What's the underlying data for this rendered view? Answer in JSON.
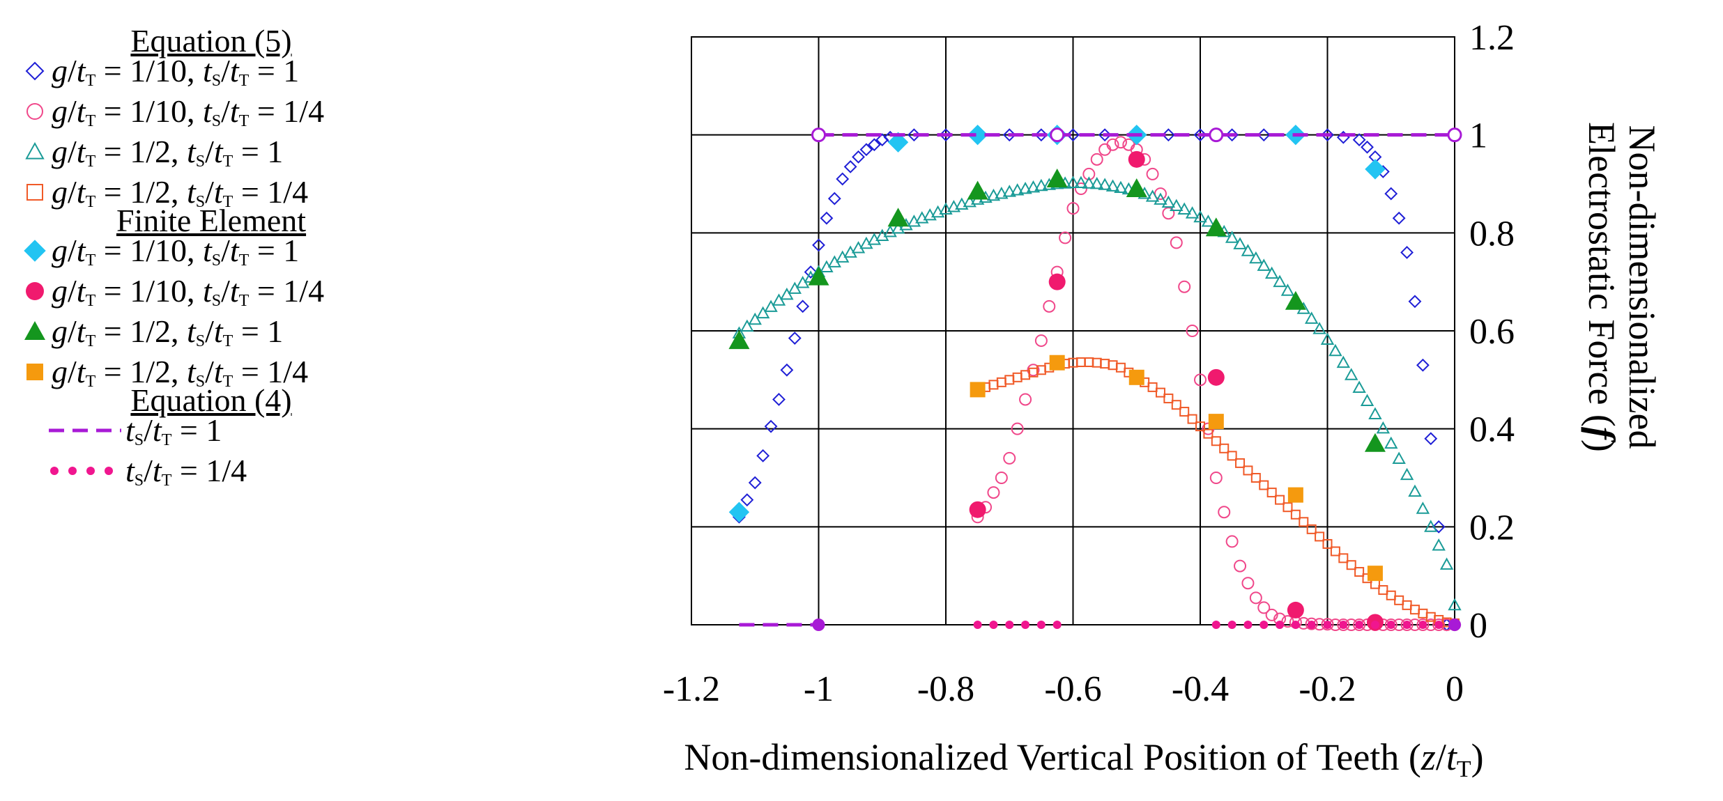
{
  "legend": {
    "heading_eq5": "Equation (5)",
    "heading_fe": "Finite Element",
    "heading_eq4": "Equation (4)",
    "items": [
      {
        "id": "eq5_a",
        "g": "1/10",
        "ts": "1",
        "marker": "diamond-open",
        "color": "#1f1fd6"
      },
      {
        "id": "eq5_b",
        "g": "1/10",
        "ts": "1/4",
        "marker": "circle-open",
        "color": "#f0478a"
      },
      {
        "id": "eq5_c",
        "g": "1/2",
        "ts": "1",
        "marker": "triangle-open",
        "color": "#1a9b97"
      },
      {
        "id": "eq5_d",
        "g": "1/2",
        "ts": "1/4",
        "marker": "square-open",
        "color": "#f05a28"
      },
      {
        "id": "fe_a",
        "g": "1/10",
        "ts": "1",
        "marker": "diamond-filled",
        "color": "#22c4f2"
      },
      {
        "id": "fe_b",
        "g": "1/10",
        "ts": "1/4",
        "marker": "circle-filled",
        "color": "#f01a6e"
      },
      {
        "id": "fe_c",
        "g": "1/2",
        "ts": "1",
        "marker": "triangle-filled",
        "color": "#14961e"
      },
      {
        "id": "fe_d",
        "g": "1/2",
        "ts": "1/4",
        "marker": "square-filled",
        "color": "#f59a0e"
      },
      {
        "id": "eq4_a",
        "ts": "1",
        "marker": "dash-line",
        "color": "#a81ad6"
      },
      {
        "id": "eq4_b",
        "ts": "1/4",
        "marker": "dot-line",
        "color": "#f0168f"
      }
    ]
  },
  "chart_data": {
    "type": "scatter",
    "title": "",
    "xlabel": "Non-dimensionalized Vertical Position of Teeth (z/tT)",
    "ylabel": "Non-dimensionalized Electrostatic Force (f)",
    "xlim": [
      -1.2,
      0
    ],
    "ylim": [
      0,
      1.2
    ],
    "xticks": [
      -1.2,
      -1,
      -0.8,
      -0.6,
      -0.4,
      -0.2,
      0
    ],
    "yticks": [
      0,
      0.2,
      0.4,
      0.6,
      0.8,
      1,
      1.2
    ],
    "xtick_labels": [
      "-1.2",
      "-1",
      "-0.8",
      "-0.6",
      "-0.4",
      "-0.2",
      "0"
    ],
    "ytick_labels": [
      "0",
      "0.2",
      "0.4",
      "0.6",
      "0.8",
      "1",
      "1.2"
    ],
    "grid": true,
    "series": [
      {
        "name": "Equation (5) g/tT = 1/10, tS/tT = 1",
        "marker": "diamond-open",
        "color": "#1f1fd6",
        "x": [
          -1.125,
          -1.1125,
          -1.1,
          -1.0875,
          -1.075,
          -1.0625,
          -1.05,
          -1.0375,
          -1.025,
          -1.0125,
          -1,
          -0.9875,
          -0.975,
          -0.9625,
          -0.95,
          -0.9375,
          -0.925,
          -0.9125,
          -0.9,
          -0.8875,
          -0.85,
          -0.8,
          -0.75,
          -0.7,
          -0.65,
          -0.6,
          -0.55,
          -0.5,
          -0.45,
          -0.4,
          -0.35,
          -0.3,
          -0.25,
          -0.2,
          -0.175,
          -0.15,
          -0.1375,
          -0.125,
          -0.1125,
          -0.1,
          -0.0875,
          -0.075,
          -0.0625,
          -0.05,
          -0.0375,
          -0.025,
          -0.0125,
          0
        ],
        "y": [
          0.22,
          0.255,
          0.29,
          0.345,
          0.405,
          0.46,
          0.52,
          0.585,
          0.65,
          0.72,
          0.775,
          0.83,
          0.87,
          0.91,
          0.935,
          0.955,
          0.97,
          0.98,
          0.99,
          0.995,
          1,
          1,
          1,
          1,
          1,
          1,
          1,
          1,
          1,
          1,
          1,
          1,
          1,
          1,
          0.995,
          0.99,
          0.975,
          0.955,
          0.925,
          0.88,
          0.83,
          0.76,
          0.66,
          0.53,
          0.38,
          0.2,
          0.0,
          0.0
        ]
      },
      {
        "name": "Equation (5) g/tT = 1/10, tS/tT = 1/4",
        "marker": "circle-open",
        "color": "#f0478a",
        "x": [
          -0.75,
          -0.7375,
          -0.725,
          -0.7125,
          -0.7,
          -0.6875,
          -0.675,
          -0.6625,
          -0.65,
          -0.6375,
          -0.625,
          -0.6125,
          -0.6,
          -0.5875,
          -0.575,
          -0.5625,
          -0.55,
          -0.5375,
          -0.525,
          -0.5125,
          -0.5,
          -0.4875,
          -0.475,
          -0.4625,
          -0.45,
          -0.4375,
          -0.425,
          -0.4125,
          -0.4,
          -0.3875,
          -0.375,
          -0.3625,
          -0.35,
          -0.3375,
          -0.325,
          -0.3125,
          -0.3,
          -0.2875,
          -0.275,
          -0.2625,
          -0.25,
          -0.2375,
          -0.225,
          -0.2125,
          -0.2,
          -0.1875,
          -0.175,
          -0.1625,
          -0.15,
          -0.1375,
          -0.125,
          -0.1125,
          -0.1,
          -0.0875,
          -0.075,
          -0.0625,
          -0.05,
          -0.0375,
          -0.025,
          -0.0125,
          0
        ],
        "y": [
          0.22,
          0.24,
          0.27,
          0.3,
          0.34,
          0.4,
          0.46,
          0.52,
          0.58,
          0.65,
          0.72,
          0.79,
          0.85,
          0.89,
          0.92,
          0.95,
          0.97,
          0.98,
          0.985,
          0.98,
          0.97,
          0.95,
          0.92,
          0.88,
          0.84,
          0.78,
          0.69,
          0.6,
          0.5,
          0.4,
          0.3,
          0.23,
          0.17,
          0.12,
          0.085,
          0.055,
          0.035,
          0.02,
          0.012,
          0.007,
          0.005,
          0.003,
          0.002,
          0.001,
          0.001,
          0,
          0,
          0,
          0,
          0,
          0,
          0,
          0,
          0,
          0,
          0,
          0,
          0,
          0,
          0,
          0
        ]
      },
      {
        "name": "Equation (5) g/tT = 1/2, tS/tT = 1",
        "marker": "triangle-open",
        "color": "#1a9b97",
        "x": [
          -1.125,
          -1.1125,
          -1.1,
          -1.0875,
          -1.075,
          -1.0625,
          -1.05,
          -1.0375,
          -1.025,
          -1.0125,
          -1,
          -0.9875,
          -0.975,
          -0.9625,
          -0.95,
          -0.9375,
          -0.925,
          -0.9125,
          -0.9,
          -0.8875,
          -0.875,
          -0.8625,
          -0.85,
          -0.8375,
          -0.825,
          -0.8125,
          -0.8,
          -0.7875,
          -0.775,
          -0.7625,
          -0.75,
          -0.7375,
          -0.725,
          -0.7125,
          -0.7,
          -0.6875,
          -0.675,
          -0.6625,
          -0.65,
          -0.6375,
          -0.625,
          -0.6125,
          -0.6,
          -0.5875,
          -0.575,
          -0.5625,
          -0.55,
          -0.5375,
          -0.525,
          -0.5125,
          -0.5,
          -0.4875,
          -0.475,
          -0.4625,
          -0.45,
          -0.4375,
          -0.425,
          -0.4125,
          -0.4,
          -0.3875,
          -0.375,
          -0.3625,
          -0.35,
          -0.3375,
          -0.325,
          -0.3125,
          -0.3,
          -0.2875,
          -0.275,
          -0.2625,
          -0.25,
          -0.2375,
          -0.225,
          -0.2125,
          -0.2,
          -0.1875,
          -0.175,
          -0.1625,
          -0.15,
          -0.1375,
          -0.125,
          -0.1125,
          -0.1,
          -0.0875,
          -0.075,
          -0.0625,
          -0.05,
          -0.0375,
          -0.025,
          -0.0125,
          0
        ],
        "y": [
          0.595,
          0.609,
          0.623,
          0.636,
          0.649,
          0.662,
          0.674,
          0.686,
          0.698,
          0.709,
          0.72,
          0.73,
          0.74,
          0.75,
          0.76,
          0.769,
          0.778,
          0.786,
          0.794,
          0.802,
          0.809,
          0.816,
          0.823,
          0.83,
          0.836,
          0.842,
          0.848,
          0.853,
          0.858,
          0.863,
          0.868,
          0.872,
          0.876,
          0.88,
          0.884,
          0.887,
          0.89,
          0.893,
          0.896,
          0.898,
          0.9,
          0.901,
          0.902,
          0.902,
          0.901,
          0.9,
          0.898,
          0.895,
          0.892,
          0.889,
          0.885,
          0.88,
          0.874,
          0.868,
          0.862,
          0.855,
          0.848,
          0.84,
          0.832,
          0.823,
          0.813,
          0.802,
          0.79,
          0.777,
          0.763,
          0.748,
          0.733,
          0.717,
          0.7,
          0.682,
          0.664,
          0.645,
          0.625,
          0.604,
          0.582,
          0.559,
          0.535,
          0.51,
          0.484,
          0.457,
          0.43,
          0.401,
          0.37,
          0.339,
          0.306,
          0.272,
          0.237,
          0.2,
          0.162,
          0.123,
          0.04
        ]
      },
      {
        "name": "Equation (5) g/tT = 1/2, tS/tT = 1/4",
        "marker": "square-open",
        "color": "#f05a28",
        "x": [
          -0.75,
          -0.7375,
          -0.725,
          -0.7125,
          -0.7,
          -0.6875,
          -0.675,
          -0.6625,
          -0.65,
          -0.6375,
          -0.625,
          -0.6125,
          -0.6,
          -0.5875,
          -0.575,
          -0.5625,
          -0.55,
          -0.5375,
          -0.525,
          -0.5125,
          -0.5,
          -0.4875,
          -0.475,
          -0.4625,
          -0.45,
          -0.4375,
          -0.425,
          -0.4125,
          -0.4,
          -0.3875,
          -0.375,
          -0.3625,
          -0.35,
          -0.3375,
          -0.325,
          -0.3125,
          -0.3,
          -0.2875,
          -0.275,
          -0.2625,
          -0.25,
          -0.2375,
          -0.225,
          -0.2125,
          -0.2,
          -0.1875,
          -0.175,
          -0.1625,
          -0.15,
          -0.1375,
          -0.125,
          -0.1125,
          -0.1,
          -0.0875,
          -0.075,
          -0.0625,
          -0.05,
          -0.0375,
          -0.025,
          -0.0125,
          0
        ],
        "y": [
          0.48,
          0.485,
          0.49,
          0.495,
          0.5,
          0.505,
          0.51,
          0.515,
          0.52,
          0.525,
          0.53,
          0.533,
          0.535,
          0.536,
          0.536,
          0.535,
          0.533,
          0.53,
          0.525,
          0.515,
          0.505,
          0.495,
          0.485,
          0.474,
          0.462,
          0.449,
          0.435,
          0.42,
          0.405,
          0.39,
          0.375,
          0.36,
          0.345,
          0.33,
          0.315,
          0.3,
          0.285,
          0.27,
          0.255,
          0.24,
          0.225,
          0.21,
          0.195,
          0.18,
          0.165,
          0.15,
          0.136,
          0.122,
          0.108,
          0.095,
          0.083,
          0.071,
          0.06,
          0.05,
          0.04,
          0.031,
          0.023,
          0.016,
          0.01,
          0.005,
          0.003
        ]
      },
      {
        "name": "Finite Element g/tT = 1/10, tS/tT = 1",
        "marker": "diamond-filled",
        "color": "#22c4f2",
        "x": [
          -1.125,
          -0.875,
          -0.75,
          -0.625,
          -0.5,
          -0.25,
          -0.125
        ],
        "y": [
          0.23,
          0.985,
          1.0,
          1.0,
          1.0,
          1.0,
          0.93
        ]
      },
      {
        "name": "Finite Element g/tT = 1/10, tS/tT = 1/4",
        "marker": "circle-filled",
        "color": "#f01a6e",
        "x": [
          -0.75,
          -0.625,
          -0.5,
          -0.375,
          -0.25,
          -0.125
        ],
        "y": [
          0.235,
          0.7,
          0.95,
          0.505,
          0.03,
          0.005
        ]
      },
      {
        "name": "Finite Element g/tT = 1/2, tS/tT = 1",
        "marker": "triangle-filled",
        "color": "#14961e",
        "x": [
          -1.125,
          -1,
          -0.875,
          -0.75,
          -0.625,
          -0.5,
          -0.375,
          -0.25,
          -0.125
        ],
        "y": [
          0.58,
          0.71,
          0.83,
          0.885,
          0.91,
          0.89,
          0.81,
          0.66,
          0.37
        ]
      },
      {
        "name": "Finite Element g/tT = 1/2, tS/tT = 1/4",
        "marker": "square-filled",
        "color": "#f59a0e",
        "x": [
          -0.75,
          -0.625,
          -0.5,
          -0.375,
          -0.25,
          -0.125
        ],
        "y": [
          0.48,
          0.535,
          0.505,
          0.415,
          0.265,
          0.105
        ]
      },
      {
        "name": "Equation (4) tS/tT = 1",
        "marker": "dash-line",
        "color": "#a81ad6",
        "segments": [
          {
            "x": [
              -1.125,
              -1
            ],
            "y": [
              0,
              0
            ]
          },
          {
            "x": [
              -1,
              0
            ],
            "y": [
              1,
              1
            ]
          }
        ],
        "points": {
          "x": [
            -1,
            -0.625,
            -0.375,
            0
          ],
          "y": [
            1,
            1,
            1,
            1
          ]
        },
        "endpoints": {
          "x": [
            -1,
            0
          ],
          "y": [
            0,
            0
          ]
        }
      },
      {
        "name": "Equation (4) tS/tT = 1/4",
        "marker": "dot-line",
        "color": "#f0168f",
        "dots_x": [
          -0.75,
          -0.725,
          -0.7,
          -0.675,
          -0.65,
          -0.625,
          -0.375,
          -0.35,
          -0.325,
          -0.3,
          -0.275,
          -0.25,
          -0.225,
          -0.2,
          -0.175,
          -0.15,
          -0.125,
          -0.1,
          -0.075,
          -0.05,
          -0.025
        ],
        "y": 0
      }
    ]
  }
}
